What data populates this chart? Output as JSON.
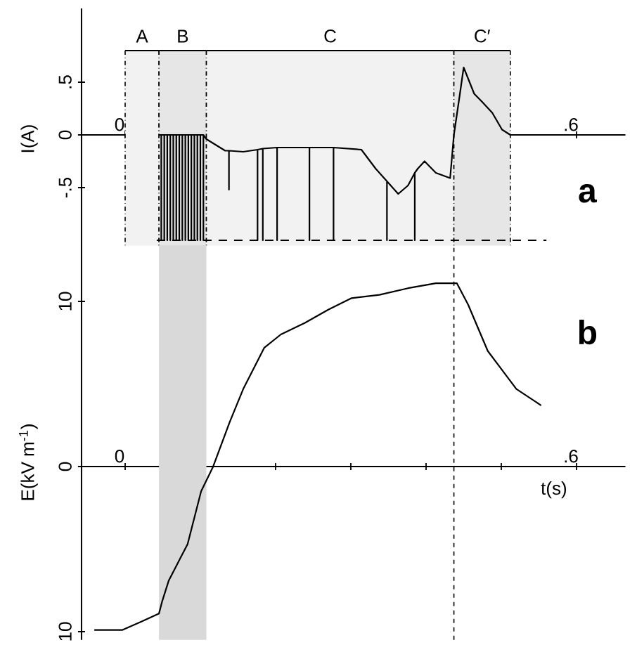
{
  "chart_data": [
    {
      "type": "line",
      "ylabel": "I(A)",
      "annotations": [
        "a"
      ],
      "xlim": [
        -0.058,
        0.665
      ],
      "ylim": [
        -1.05,
        1.2
      ],
      "xticks": [
        {
          "value": 0,
          "label": "0"
        },
        {
          "value": 0.1,
          "label": null
        },
        {
          "value": 0.2,
          "label": null
        },
        {
          "value": 0.3,
          "label": null
        },
        {
          "value": 0.4,
          "label": null
        },
        {
          "value": 0.5,
          "label": null
        },
        {
          "value": 0.6,
          "label": ".6"
        }
      ],
      "yticks": [
        {
          "value": -0.5,
          "label": "-.5"
        },
        {
          "value": 0,
          "label": "0"
        },
        {
          "value": 0.5,
          "label": ".5"
        }
      ],
      "series": [
        {
          "color": "#000000",
          "x": [
            0.045,
            0.048,
            0.048,
            0.048,
            0.052,
            0.052,
            0.052,
            0.056,
            0.056,
            0.056,
            0.06,
            0.06,
            0.06,
            0.064,
            0.064,
            0.064,
            0.068,
            0.068,
            0.068,
            0.072,
            0.072,
            0.072,
            0.076,
            0.076,
            0.076,
            0.08,
            0.08,
            0.08,
            0.084,
            0.084,
            0.084,
            0.088,
            0.088,
            0.088,
            0.092,
            0.092,
            0.092,
            0.096,
            0.096,
            0.096,
            0.1,
            0.1,
            0.1,
            0.104,
            0.104,
            0.104,
            0.108,
            0.133,
            0.138,
            0.138,
            0.138,
            0.157,
            0.176,
            0.176,
            0.176,
            0.183,
            0.183,
            0.183,
            0.202,
            0.202,
            0.202,
            0.22,
            0.245,
            0.245,
            0.245,
            0.27,
            0.277,
            0.277,
            0.277,
            0.314,
            0.333,
            0.348,
            0.348,
            0.348,
            0.363,
            0.376,
            0.385,
            0.385,
            0.385,
            0.389,
            0.398,
            0.413,
            0.432,
            0.437,
            0.445,
            0.45,
            0.464,
            0.475,
            0.488,
            0.501,
            0.512
          ],
          "values": [
            0,
            0,
            -1,
            0,
            0,
            -1,
            0,
            0,
            -1,
            0,
            0,
            -1,
            0,
            0,
            -1,
            0,
            0,
            -1,
            0,
            0,
            -1,
            0,
            0,
            -1,
            0,
            0,
            -1,
            0,
            0,
            -1,
            0,
            0,
            -1,
            0,
            0,
            -1,
            0,
            0,
            -1,
            0,
            0,
            -1,
            0,
            0,
            -1,
            0,
            -0.04,
            -0.15,
            -0.15,
            -0.52,
            -0.15,
            -0.16,
            -0.14,
            -1,
            -0.14,
            -0.13,
            -1,
            -0.13,
            -0.12,
            -1,
            -0.12,
            -0.12,
            -0.12,
            -1,
            -0.12,
            -0.12,
            -0.12,
            -1,
            -0.12,
            -0.14,
            -0.32,
            -0.44,
            -1,
            -0.44,
            -0.56,
            -0.48,
            -0.36,
            -1,
            -0.36,
            -0.32,
            -0.25,
            -0.36,
            -0.41,
            0,
            0.39,
            0.64,
            0.39,
            0.31,
            0.21,
            0.05,
            0
          ]
        }
      ],
      "ref_lines": [
        {
          "axis": "y",
          "value": -1,
          "line_style": "dashed"
        }
      ],
      "bands": [
        {
          "axis": "x",
          "from": 0,
          "to": 0.045,
          "label": "A",
          "color": "#f2f2f2"
        },
        {
          "axis": "x",
          "from": 0.045,
          "to": 0.108,
          "label": "B",
          "color": "#e6e6e6"
        },
        {
          "axis": "x",
          "from": 0.108,
          "to": 0.437,
          "label": "C",
          "color": "#f2f2f2"
        },
        {
          "axis": "x",
          "from": 0.437,
          "to": 0.512,
          "label": "C′",
          "color": "#e6e6e6"
        }
      ],
      "grid": false,
      "marker": "none",
      "line_style": "solid"
    },
    {
      "type": "line",
      "xlabel": "t(s)",
      "ylabel": "E(kV m$^{-1}$)",
      "annotations": [
        "b"
      ],
      "xlim": [
        -0.058,
        0.665
      ],
      "ylim": [
        -10.5,
        13.4
      ],
      "xticks": [
        {
          "value": 0,
          "label": "0"
        },
        {
          "value": 0.1,
          "label": null
        },
        {
          "value": 0.2,
          "label": null
        },
        {
          "value": 0.3,
          "label": null
        },
        {
          "value": 0.4,
          "label": null
        },
        {
          "value": 0.5,
          "label": null
        },
        {
          "value": 0.6,
          "label": ".6"
        }
      ],
      "yticks": [
        {
          "value": -10,
          "label": "10"
        },
        {
          "value": 0,
          "label": "0"
        },
        {
          "value": 10,
          "label": "10"
        }
      ],
      "series": [
        {
          "color": "#000000",
          "x": [
            -0.041,
            -0.004,
            0.021,
            0.045,
            0.049,
            0.058,
            0.083,
            0.101,
            0.117,
            0.139,
            0.157,
            0.185,
            0.207,
            0.239,
            0.27,
            0.301,
            0.338,
            0.376,
            0.413,
            0.441,
            0.456,
            0.482,
            0.52,
            0.553
          ],
          "values": [
            -9.9,
            -9.9,
            -9.4,
            -8.9,
            -8.2,
            -6.9,
            -4.7,
            -1.5,
            0,
            2.7,
            4.7,
            7.2,
            8.0,
            8.7,
            9.5,
            10.2,
            10.4,
            10.8,
            11.1,
            11.1,
            9.8,
            7.0,
            4.7,
            3.7
          ]
        }
      ],
      "ref_lines": [
        {
          "axis": "x",
          "value": 0.437,
          "line_style": "dashed"
        }
      ],
      "bands": [
        {
          "axis": "x",
          "from": 0.045,
          "to": 0.108,
          "color": "#d9d9d9"
        }
      ],
      "grid": false,
      "marker": "none",
      "line_style": "solid"
    }
  ]
}
